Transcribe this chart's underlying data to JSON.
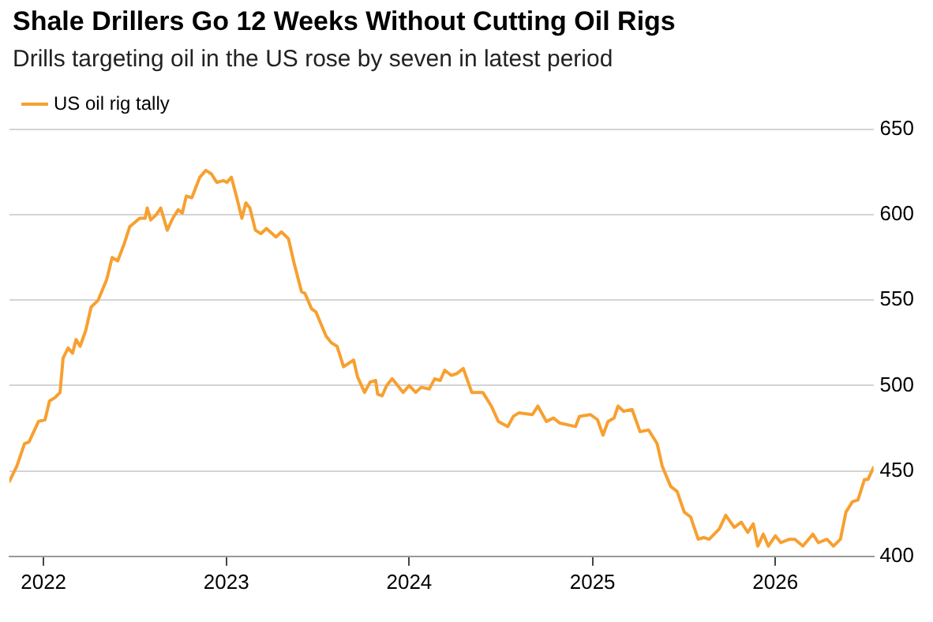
{
  "chart_data": {
    "type": "line",
    "title": "Shale Drillers Go 12 Weeks Without Cutting Oil Rigs",
    "subtitle": "Drills targeting oil in the US rose by seven in latest period",
    "x": [
      "2021-10-25",
      "2021-11-09",
      "2021-11-24",
      "2021-12-03",
      "2021-12-22",
      "2022-01-04",
      "2022-01-13",
      "2022-01-24",
      "2022-02-03",
      "2022-02-09",
      "2022-02-19",
      "2022-02-28",
      "2022-03-07",
      "2022-03-15",
      "2022-03-26",
      "2022-04-06",
      "2022-04-20",
      "2022-05-07",
      "2022-05-18",
      "2022-05-29",
      "2022-06-11",
      "2022-06-22",
      "2022-07-12",
      "2022-07-23",
      "2022-07-27",
      "2022-08-03",
      "2022-08-14",
      "2022-08-23",
      "2022-09-05",
      "2022-09-16",
      "2022-09-27",
      "2022-10-05",
      "2022-10-13",
      "2022-10-24",
      "2022-11-09",
      "2022-11-21",
      "2022-12-02",
      "2022-12-13",
      "2022-12-26",
      "2023-01-02",
      "2023-01-11",
      "2023-01-21",
      "2023-02-01",
      "2023-02-09",
      "2023-02-17",
      "2023-02-28",
      "2023-03-11",
      "2023-03-22",
      "2023-04-10",
      "2023-04-21",
      "2023-05-05",
      "2023-05-16",
      "2023-05-31",
      "2023-06-07",
      "2023-06-20",
      "2023-06-29",
      "2023-07-19",
      "2023-07-30",
      "2023-08-10",
      "2023-08-23",
      "2023-09-12",
      "2023-09-20",
      "2023-10-04",
      "2023-10-15",
      "2023-10-26",
      "2023-10-30",
      "2023-11-08",
      "2023-11-17",
      "2023-11-28",
      "2023-12-20",
      "2024-01-01",
      "2024-01-14",
      "2024-01-25",
      "2024-02-10",
      "2024-02-21",
      "2024-03-03",
      "2024-03-12",
      "2024-03-25",
      "2024-04-05",
      "2024-04-18",
      "2024-05-05",
      "2024-05-27",
      "2024-06-13",
      "2024-06-27",
      "2024-07-16",
      "2024-07-27",
      "2024-08-07",
      "2024-09-03",
      "2024-09-14",
      "2024-10-01",
      "2024-10-15",
      "2024-10-28",
      "2024-11-28",
      "2024-12-06",
      "2024-12-28",
      "2025-01-11",
      "2025-01-22",
      "2025-02-01",
      "2025-02-13",
      "2025-02-21",
      "2025-03-04",
      "2025-03-21",
      "2025-04-06",
      "2025-04-23",
      "2025-05-10",
      "2025-05-20",
      "2025-06-06",
      "2025-06-19",
      "2025-07-03",
      "2025-07-16",
      "2025-07-31",
      "2025-08-11",
      "2025-08-22",
      "2025-09-11",
      "2025-09-24",
      "2025-10-11",
      "2025-10-25",
      "2025-11-07",
      "2025-11-18",
      "2025-11-27",
      "2025-12-08",
      "2025-12-18",
      "2026-01-01",
      "2026-01-12",
      "2026-01-29",
      "2026-02-09",
      "2026-02-25",
      "2026-03-17",
      "2026-03-28",
      "2026-04-14",
      "2026-04-27",
      "2026-05-11",
      "2026-05-22",
      "2026-06-04",
      "2026-06-15",
      "2026-06-28",
      "2026-07-05",
      "2026-07-16"
    ],
    "series": [
      {
        "name": "US oil rig tally",
        "color": "#f7a030",
        "values": [
          444,
          453,
          466,
          467,
          479,
          480,
          491,
          493,
          496,
          516,
          522,
          519,
          527,
          523,
          532,
          546,
          550,
          562,
          575,
          573,
          583,
          593,
          598,
          598,
          604,
          597,
          600,
          604,
          591,
          598,
          603,
          601,
          611,
          610,
          622,
          626,
          624,
          619,
          620,
          619,
          622,
          611,
          598,
          607,
          604,
          591,
          589,
          592,
          587,
          590,
          586,
          572,
          555,
          554,
          545,
          543,
          529,
          525,
          523,
          511,
          515,
          505,
          496,
          502,
          503,
          495,
          494,
          500,
          504,
          496,
          500,
          496,
          499,
          498,
          504,
          503,
          509,
          506,
          507,
          510,
          496,
          496,
          488,
          479,
          476,
          482,
          484,
          483,
          488,
          479,
          481,
          478,
          476,
          482,
          483,
          480,
          471,
          479,
          481,
          488,
          485,
          486,
          473,
          474,
          466,
          453,
          441,
          438,
          426,
          423,
          410,
          411,
          410,
          416,
          424,
          417,
          420,
          414,
          419,
          406,
          413,
          406,
          412,
          408,
          410,
          410,
          406,
          413,
          408,
          410,
          406,
          410,
          426,
          432,
          433,
          445,
          445,
          452
        ]
      }
    ],
    "xlim": [
      "2021-10-25",
      "2026-07-16"
    ],
    "xticks": [
      "2022",
      "2023",
      "2024",
      "2025",
      "2026"
    ],
    "ylim": [
      400,
      650
    ],
    "yticks": [
      400,
      450,
      500,
      550,
      600,
      650
    ],
    "grid": "y",
    "legend": "top left",
    "marker": "none",
    "line_style": "solid"
  }
}
